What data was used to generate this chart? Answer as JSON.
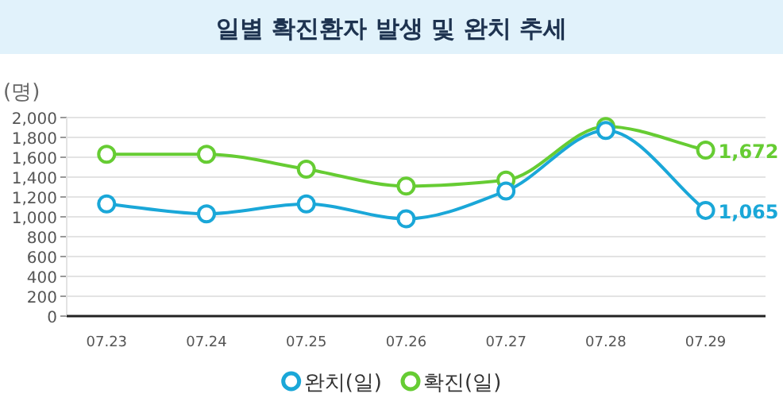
{
  "chart_data": {
    "type": "line",
    "title": "일별 확진환자 발생 및 완치 추세",
    "ylabel": "(명)",
    "categories": [
      "07.23",
      "07.24",
      "07.25",
      "07.26",
      "07.27",
      "07.28",
      "07.29"
    ],
    "series": [
      {
        "name": "완치(일)",
        "color": "#1aa7d8",
        "values": [
          1130,
          1030,
          1130,
          980,
          1260,
          1870,
          1065
        ],
        "value_labels": [
          null,
          null,
          null,
          null,
          null,
          null,
          "1,065"
        ]
      },
      {
        "name": "확진(일)",
        "color": "#66cc33",
        "values": [
          1630,
          1630,
          1480,
          1310,
          1370,
          1910,
          1672
        ],
        "value_labels": [
          null,
          null,
          null,
          null,
          null,
          null,
          "1,672"
        ]
      }
    ],
    "ylim": [
      0,
      2000
    ],
    "yticks": [
      0,
      {
        "value": 200,
        "label": "200"
      },
      {
        "value": 400,
        "label": "400"
      },
      {
        "value": 600,
        "label": "600"
      },
      {
        "value": 800,
        "label": "800"
      },
      {
        "value": 1000,
        "label": "1,000"
      },
      {
        "value": 1200,
        "label": "1,200"
      },
      {
        "value": 1400,
        "label": "1,400"
      },
      {
        "value": 1600,
        "label": "1,600"
      },
      {
        "value": 1800,
        "label": "1,800"
      },
      {
        "value": 2000,
        "label": "2,000"
      }
    ],
    "grid": "y",
    "legend": "bottom",
    "marker": "circle",
    "line_style": "solid"
  }
}
